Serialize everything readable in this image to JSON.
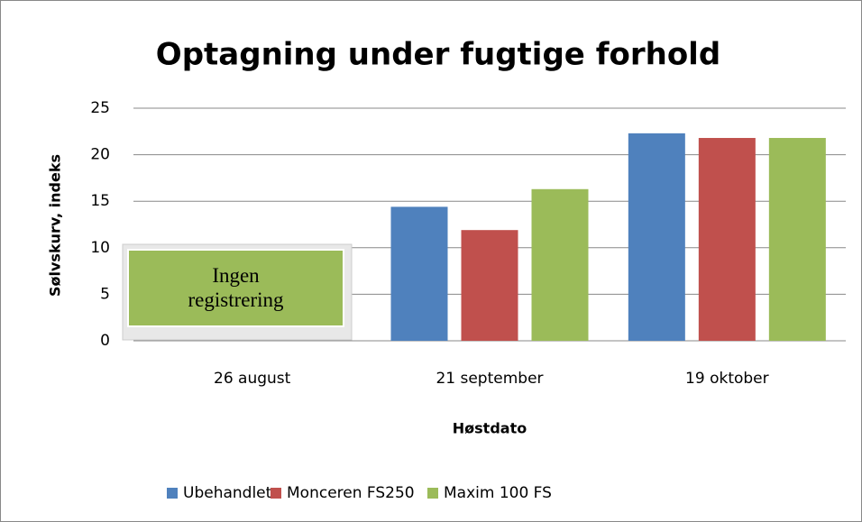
{
  "chart_data": {
    "type": "bar",
    "title": "Optagning under fugtige forhold",
    "x_label": "Høstdato",
    "y_label": "Sølvskurv, indeks",
    "categories": [
      "26 august",
      "21 september",
      "19 oktober"
    ],
    "series": [
      {
        "name": "Ubehandlet",
        "color": "#4f81bd",
        "values": [
          null,
          14.4,
          22.3
        ]
      },
      {
        "name": "Monceren FS250",
        "color": "#c0504d",
        "values": [
          null,
          11.9,
          21.8
        ]
      },
      {
        "name": "Maxim 100 FS",
        "color": "#9bbb59",
        "values": [
          null,
          16.3,
          21.8
        ]
      }
    ],
    "annotation": "Ingen registrering",
    "ylim": [
      0,
      25
    ],
    "yticks": [
      0,
      5,
      10,
      15,
      20,
      25
    ],
    "grid": true,
    "legend": "bottom"
  }
}
